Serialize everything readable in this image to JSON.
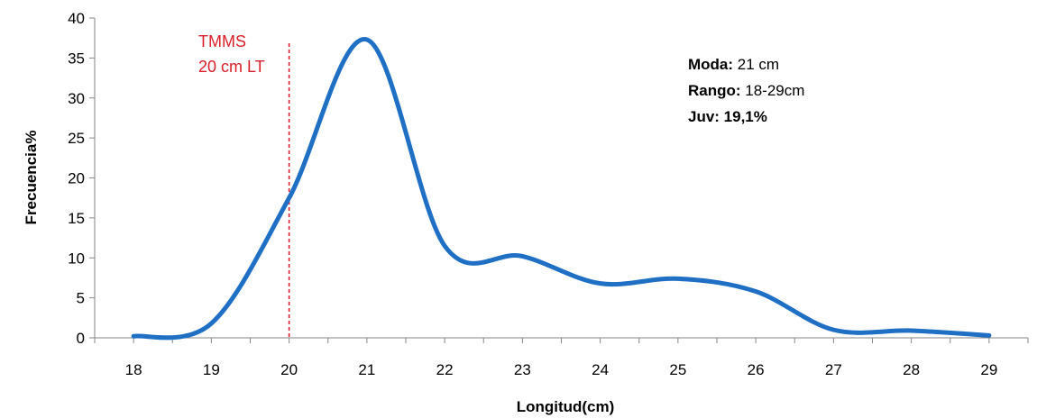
{
  "chart_data": {
    "type": "line",
    "title": "",
    "xlabel": "Longitud(cm)",
    "ylabel": "Frecuencia%",
    "xlim": [
      17.5,
      29.5
    ],
    "ylim": [
      0,
      40
    ],
    "x_ticks": [
      "18",
      "19",
      "20",
      "21",
      "22",
      "23",
      "24",
      "25",
      "26",
      "27",
      "28",
      "29"
    ],
    "y_ticks": [
      "0",
      "5",
      "10",
      "15",
      "20",
      "25",
      "30",
      "35",
      "40"
    ],
    "grid": false,
    "smooth": true,
    "series": [
      {
        "color": "#1f6fc5",
        "x": [
          18,
          19,
          20,
          21,
          22,
          23,
          24,
          25,
          26,
          27,
          28,
          29
        ],
        "y": [
          0.2,
          1.8,
          17.5,
          37.3,
          11.5,
          10.2,
          6.8,
          7.4,
          5.8,
          1.0,
          0.9,
          0.3
        ]
      }
    ],
    "reference_line": {
      "x": 20,
      "color": "#d9202a",
      "label_lines": [
        "TMMS",
        "20 cm LT"
      ]
    },
    "annotation": {
      "lines": [
        {
          "label": "Moda:",
          "value": " 21 cm"
        },
        {
          "label": "Rango:",
          "value": " 18-29cm"
        },
        {
          "label": "Juv: 19,1%",
          "value": ""
        }
      ]
    }
  }
}
